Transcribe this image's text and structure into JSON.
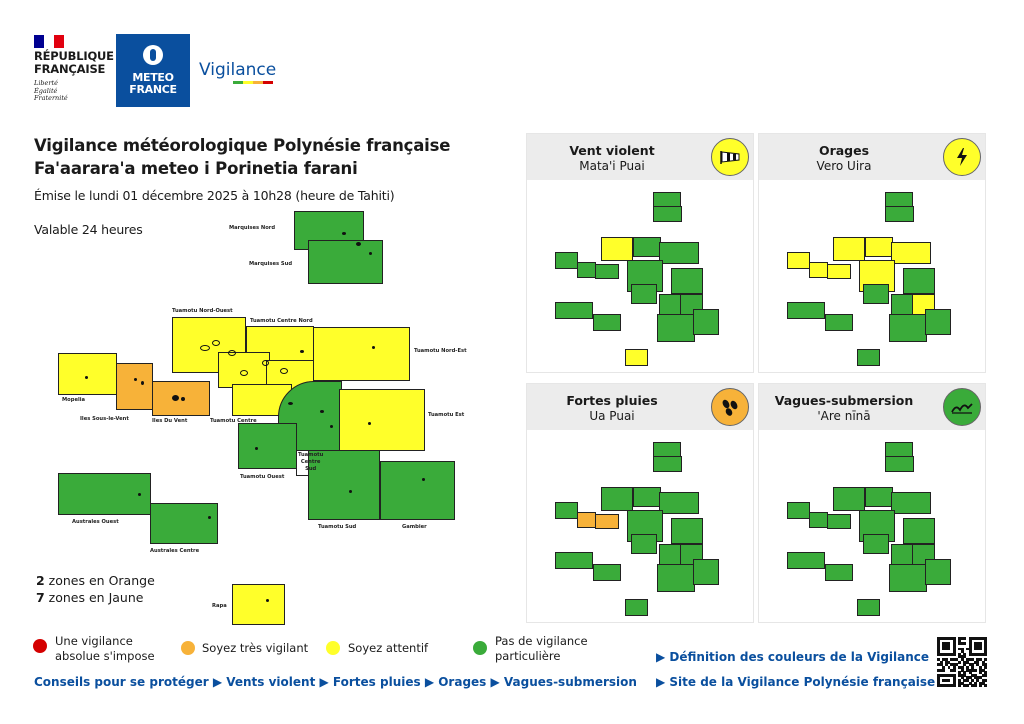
{
  "header": {
    "rf_name_line1": "RÉPUBLIQUE",
    "rf_name_line2": "FRANÇAISE",
    "rf_motto_1": "Liberté",
    "rf_motto_2": "Égalité",
    "rf_motto_3": "Fraternité",
    "mf_logo_1": "METEO",
    "mf_logo_2": "FRANCE",
    "vigilance_logo": "Vigilance"
  },
  "bulletin": {
    "title_fr": "Vigilance météorologique Polynésie française",
    "title_tah": "Fa'aarara'a meteo i Porinetia farani",
    "issued": "Émise le lundi 01 décembre 2025 à 10h28 (heure de Tahiti)",
    "validity": "Valable 24 heures",
    "count_orange_num": "2",
    "count_orange_txt": " zones en Orange",
    "count_yellow_num": "7",
    "count_yellow_txt": " zones en Jaune"
  },
  "colors": {
    "green": "#3aab3a",
    "yellow": "#ffff2a",
    "orange": "#f7b239",
    "red": "#d40000",
    "brand_blue": "#0a4f9e",
    "flag_blue": "#000091",
    "flag_red": "#e1000f"
  },
  "zones": {
    "marquises_nord": {
      "label": "Marquises Nord",
      "level": "green"
    },
    "marquises_sud": {
      "label": "Marquises Sud",
      "level": "green"
    },
    "tuamotu_nord_ouest": {
      "label": "Tuamotu Nord-Ouest",
      "level": "yellow"
    },
    "tuamotu_centre_nord": {
      "label": "Tuamotu Centre Nord",
      "level": "yellow"
    },
    "tuamotu_nord_est": {
      "label": "Tuamotu Nord-Est",
      "level": "yellow"
    },
    "mopelia": {
      "label": "Mopelia",
      "level": "yellow"
    },
    "iles_sous_le_vent": {
      "label": "Iles Sous-le-Vent",
      "level": "orange"
    },
    "iles_du_vent": {
      "label": "Iles Du Vent",
      "level": "orange"
    },
    "tuamotu_centre": {
      "label": "Tuamotu Centre",
      "level": "yellow"
    },
    "tuamotu_est": {
      "label": "Tuamotu Est",
      "level": "yellow"
    },
    "tuamotu_ouest": {
      "label": "Tuamotu Ouest",
      "level": "green"
    },
    "tuamotu_centre_sud": {
      "label": "Tuamotu\nCentre\nSud",
      "level": "green"
    },
    "tuamotu_sud": {
      "label": "Tuamotu Sud",
      "level": "green"
    },
    "gambier": {
      "label": "Gambier",
      "level": "green"
    },
    "australes_ouest": {
      "label": "Australes Ouest",
      "level": "green"
    },
    "australes_centre": {
      "label": "Australes Centre",
      "level": "green"
    },
    "rapa": {
      "label": "Rapa",
      "level": "yellow"
    }
  },
  "panels": [
    {
      "title": "Vent violent",
      "subtitle": "Mata'i Puai",
      "icon": "windsock-icon",
      "icon_color": "#ffff2a"
    },
    {
      "title": "Orages",
      "subtitle": "Vero Uira",
      "icon": "lightning-icon",
      "icon_color": "#ffff2a"
    },
    {
      "title": "Fortes pluies",
      "subtitle": "Ua Puai",
      "icon": "rain-drops-icon",
      "icon_color": "#f7b239"
    },
    {
      "title": "Vagues-submersion",
      "subtitle": "'Are nīnā",
      "icon": "waves-icon",
      "icon_color": "#3aab3a"
    }
  ],
  "legend": {
    "red": "Une vigilance absolue s'impose",
    "orange": "Soyez très vigilant",
    "yellow": "Soyez attentif",
    "green": "Pas de vigilance particulière"
  },
  "links": {
    "conseils": "Conseils pour se protéger",
    "vents": "Vents violent",
    "pluies": "Fortes pluies",
    "orages": "Orages",
    "vagues": "Vagues-submersion",
    "definition": "Définition des couleurs de la Vigilance",
    "site": "Site de la Vigilance Polynésie française"
  }
}
